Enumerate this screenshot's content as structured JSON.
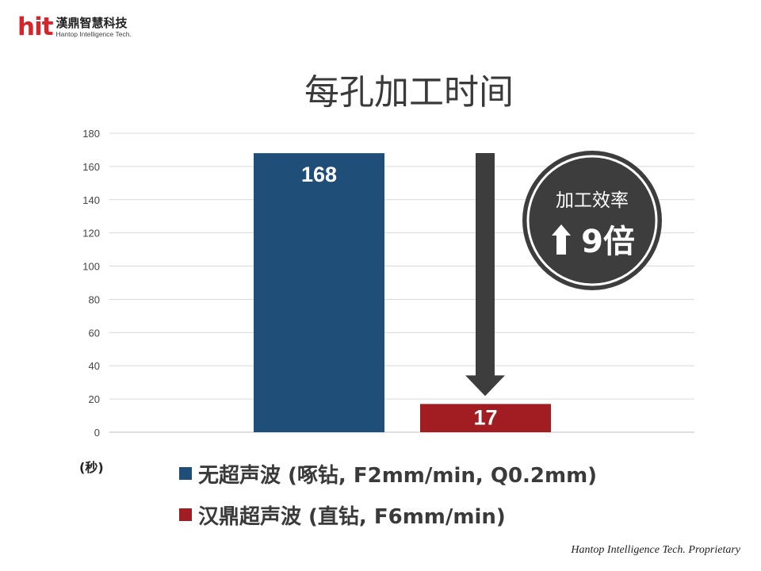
{
  "logo": {
    "mark": "hit",
    "name_cn": "漢鼎智慧科技",
    "name_en": "Hantop Intelligence Tech."
  },
  "chart_data": {
    "type": "bar",
    "title": "每孔加工时间",
    "ylabel": "(秒)",
    "ylim": [
      0,
      180
    ],
    "yticks": [
      0,
      20,
      40,
      60,
      80,
      100,
      120,
      140,
      160,
      180
    ],
    "grid": true,
    "legend_position": "bottom",
    "series": [
      {
        "name": "无超声波 (啄钻, F2mm/min, Q0.2mm)",
        "values": [
          168
        ],
        "color": "#1f4e79",
        "label": "168"
      },
      {
        "name": "汉鼎超声波 (直钻, F6mm/min)",
        "values": [
          17
        ],
        "color": "#a11d21",
        "label": "17"
      }
    ],
    "annotation": {
      "top": "加工效率",
      "value": "9倍",
      "icon": "up-arrow-icon",
      "arrow": "down-arrow-icon"
    }
  },
  "footer": "Hantop Intelligence Tech. Proprietary"
}
